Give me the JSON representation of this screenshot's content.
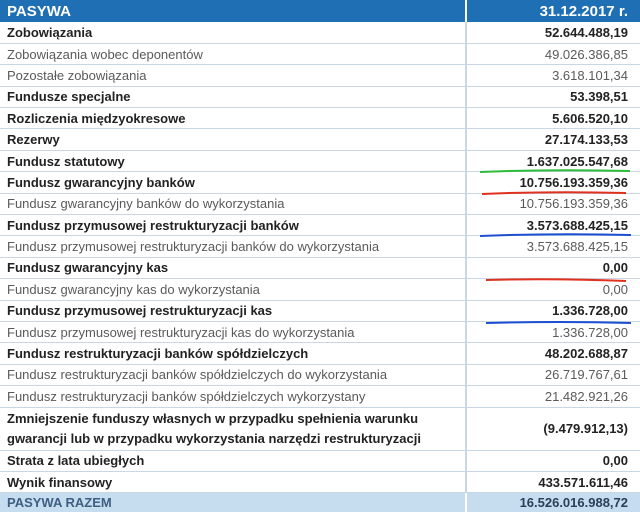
{
  "header": {
    "title": "PASYWA",
    "date": "31.12.2017 r."
  },
  "table": {
    "rows": [
      [
        "Zobowiązania",
        "52.644.488,19"
      ],
      [
        "Zobowiązania wobec deponentów",
        "49.026.386,85"
      ],
      [
        "Pozostałe zobowiązania",
        "3.618.101,34"
      ],
      [
        "Fundusze specjalne",
        "53.398,51"
      ],
      [
        "Rozliczenia międzyokresowe",
        "5.606.520,10"
      ],
      [
        "Rezerwy",
        "27.174.133,53"
      ],
      [
        "Fundusz statutowy",
        "1.637.025.547,68"
      ],
      [
        "Fundusz gwarancyjny banków",
        "10.756.193.359,36"
      ],
      [
        "Fundusz gwarancyjny banków do wykorzystania",
        "10.756.193.359,36"
      ],
      [
        "Fundusz przymusowej restrukturyzacji banków",
        "3.573.688.425,15"
      ],
      [
        "Fundusz przymusowej restrukturyzacji banków do wykorzystania",
        "3.573.688.425,15"
      ],
      [
        "Fundusz gwarancyjny kas",
        "0,00"
      ],
      [
        "Fundusz gwarancyjny kas do wykorzystania",
        "0,00"
      ],
      [
        "Fundusz przymusowej restrukturyzacji kas",
        "1.336.728,00"
      ],
      [
        "Fundusz przymusowej restrukturyzacji kas do wykorzystania",
        "1.336.728,00"
      ],
      [
        "Fundusz restrukturyzacji banków spółdzielczych",
        "48.202.688,87"
      ],
      [
        "Fundusz restrukturyzacji banków spółdzielczych do wykorzystania",
        "26.719.767,61"
      ],
      [
        "Fundusz restrukturyzacji banków spółdzielczych wykorzystany",
        "21.482.921,26"
      ],
      [
        "Zmniejszenie funduszy własnych w przypadku spełnienia warunku gwarancji lub w przypadku wykorzystania narzędzi restrukturyzacji",
        "(9.479.912,13)"
      ],
      [
        "Strata z lata ubiegłych",
        "0,00"
      ],
      [
        "Wynik finansowy",
        "433.571.611,46"
      ]
    ]
  },
  "footer": {
    "label": "PASYWA RAZEM",
    "value": "16.526.016.988,72"
  }
}
